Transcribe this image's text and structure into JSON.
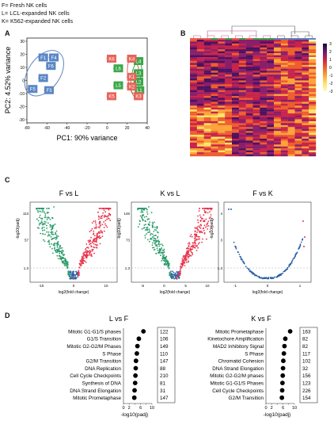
{
  "legend": [
    "F= Fresh NK cells",
    "L= LCL-expanded NK cells",
    "K= K562-expanded NK cells"
  ],
  "panel_letters": {
    "a": "A",
    "b": "B",
    "c": "C",
    "d": "D"
  },
  "colors": {
    "fresh": "#5b86c5",
    "lcl": "#3aa84a",
    "k562": "#e8645a",
    "up": "#e8334a",
    "down": "#2a9a6a",
    "ns": "#2a5fa8",
    "dot": "#000000"
  },
  "chart_data": [
    {
      "type": "scatter",
      "xlabel": "PC1: 90% variance",
      "ylabel": "PC2: 4.52% variance",
      "xlim": [
        -80,
        45
      ],
      "ylim": [
        -35,
        35
      ],
      "x_ticks": [
        "-80",
        "-60",
        "-40",
        "-20",
        "0",
        "20",
        "40"
      ],
      "y_ticks": [
        "30",
        "20",
        "10",
        "0",
        "-10",
        "-20",
        "-30"
      ],
      "series": [
        {
          "name": "F",
          "points": [
            {
              "label": "F1",
              "x": -63,
              "y": 19
            },
            {
              "label": "F4",
              "x": -52,
              "y": 19
            },
            {
              "label": "F6",
              "x": -55,
              "y": 12
            },
            {
              "label": "F2",
              "x": -63,
              "y": 2
            },
            {
              "label": "F5",
              "x": -74,
              "y": -7
            },
            {
              "label": "F3",
              "x": -57,
              "y": -8
            }
          ]
        },
        {
          "name": "L",
          "points": [
            {
              "label": "L6",
              "x": 15,
              "y": 10
            },
            {
              "label": "L4",
              "x": 36,
              "y": 16
            },
            {
              "label": "L3",
              "x": 36,
              "y": 6
            },
            {
              "label": "L2",
              "x": 36,
              "y": -1
            },
            {
              "label": "L1",
              "x": 37,
              "y": -8
            },
            {
              "label": "L5",
              "x": 15,
              "y": -4
            }
          ]
        },
        {
          "name": "K",
          "points": [
            {
              "label": "K6",
              "x": 8,
              "y": 18
            },
            {
              "label": "K4",
              "x": 29,
              "y": 18
            },
            {
              "label": "K1",
              "x": 29,
              "y": 3
            },
            {
              "label": "K2",
              "x": 29,
              "y": -5
            },
            {
              "label": "K3",
              "x": 36,
              "y": -13
            },
            {
              "label": "K5",
              "x": 8,
              "y": -13
            }
          ]
        }
      ]
    },
    {
      "type": "heatmap",
      "colorbar_ticks": [
        "3",
        "2",
        "1",
        "0",
        "-1",
        "-2",
        "-3"
      ],
      "column_colors": [
        "#e8645a",
        "#e8645a",
        "#e8645a",
        "#3aa84a",
        "#e8645a",
        "#3aa84a",
        "#e8645a",
        "#3aa84a",
        "#e8645a",
        "#3aa84a",
        "#3aa84a",
        "#3aa84a",
        "#5b86c5",
        "#5b86c5",
        "#5b86c5",
        "#5b86c5",
        "#5b86c5",
        "#5b86c5"
      ]
    },
    {
      "type": "scatter",
      "title": "F vs L",
      "xlabel": "log2(fold change)",
      "ylabel": "-log10(padj)",
      "x_ticks": [
        "-10",
        "0",
        "10"
      ],
      "y_ticks": [
        "113",
        "57",
        "1.3"
      ]
    },
    {
      "type": "scatter",
      "title": "K vs L",
      "xlabel": "log2(fold change)",
      "ylabel": "-log10(padj)",
      "x_ticks": [
        "-5",
        "0",
        "5",
        "10"
      ],
      "y_ticks": [
        "146",
        "73",
        "1.3"
      ]
    },
    {
      "type": "scatter",
      "title": "F vs K",
      "xlabel": "log2(fold change)",
      "ylabel": "-log10(padj)",
      "x_ticks": [
        "-1",
        "0",
        "1"
      ],
      "y_ticks": [
        "4",
        "3",
        "1.3"
      ]
    },
    {
      "type": "scatter",
      "title": "L vs F",
      "xlabel": "-log10(padj)",
      "xlim": [
        0,
        10
      ],
      "x_ticks": [
        "0",
        "2",
        "4",
        "6",
        "8",
        "10"
      ],
      "categories": [
        "Mitotic G1-G1/S phases",
        "G1/S Transition",
        "Mitotic G2-G2/M Phases",
        "S Phase",
        "G2/M Transition",
        "DNA Replication",
        "Cell Cycle Checkpoints",
        "Synthesis of DNA",
        "DNA Strand Elongation",
        "Mitotic Prometaphase"
      ],
      "values": [
        7.0,
        5.4,
        4.9,
        4.7,
        4.4,
        4.3,
        4.2,
        4.1,
        3.9,
        3.8
      ],
      "counts": [
        "122",
        "106",
        "149",
        "110",
        "147",
        "88",
        "210",
        "81",
        "31",
        "147"
      ]
    },
    {
      "type": "scatter",
      "title": "K vs F",
      "xlabel": "-log10(padj)",
      "xlim": [
        0,
        10
      ],
      "x_ticks": [
        "0",
        "2",
        "4",
        "6",
        "8",
        "10"
      ],
      "categories": [
        "Mitotic Prometaphase",
        "Kinetochore Amplification",
        "MAD2 Inhibitory Signal",
        "S Phase",
        "Chromatid Cohesion",
        "DNA Strand Elongation",
        "Mitotic G2-G2/M phases",
        "Mitotic G1-G1/S Phases",
        "Cell Cycle Checkpoints",
        "G2/M Transition"
      ],
      "values": [
        8.5,
        6.8,
        6.5,
        6.3,
        6.1,
        6.0,
        5.9,
        5.8,
        5.7,
        5.6
      ],
      "counts": [
        "163",
        "82",
        "82",
        "117",
        "102",
        "32",
        "156",
        "123",
        "226",
        "154"
      ]
    }
  ]
}
